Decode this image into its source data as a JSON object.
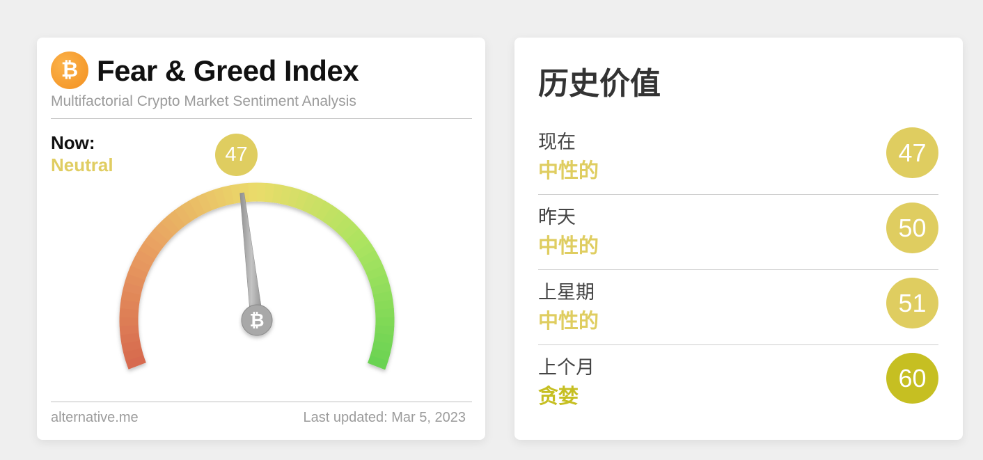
{
  "colors": {
    "neutral": "#dfcd60",
    "greed": "#c6bf22",
    "logo": "#f39020"
  },
  "left_card": {
    "logo_icon": "bitcoin-icon",
    "logo_glyph": "₿",
    "title": "Fear & Greed Index",
    "subtitle": "Multifactorial Crypto Market Sentiment Analysis",
    "now_label": "Now:",
    "now_classification": "Neutral",
    "value": "47",
    "gauge_value": 47,
    "gauge_range": [
      0,
      100
    ],
    "hub_glyph": "₿",
    "footer_source": "alternative.me",
    "footer_updated": "Last updated: Mar 5, 2023"
  },
  "right_card": {
    "title": "历史价值",
    "rows": [
      {
        "period": "现在",
        "classification": "中性的",
        "value": "47",
        "color": "#dfcd60"
      },
      {
        "period": "昨天",
        "classification": "中性的",
        "value": "50",
        "color": "#dfcd60"
      },
      {
        "period": "上星期",
        "classification": "中性的",
        "value": "51",
        "color": "#dfcd60"
      },
      {
        "period": "上个月",
        "classification": "贪婪",
        "value": "60",
        "color": "#c6bf22"
      }
    ]
  }
}
